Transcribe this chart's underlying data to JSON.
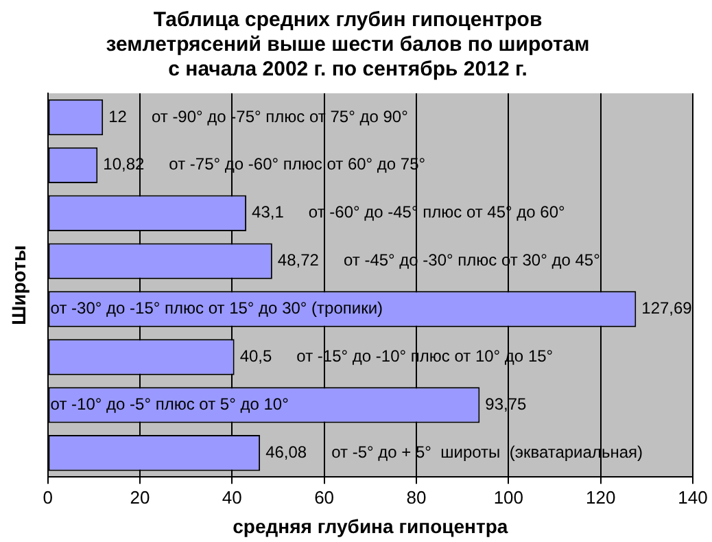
{
  "chart_data": {
    "type": "bar",
    "orientation": "horizontal",
    "title": "Таблица средних глубин гипоцентров\nземлетрясений выше шести балов по широтам\nс начала 2002 г. по сентябрь 2012 г.",
    "xlabel": "средняя глубина гипоцентра",
    "ylabel": "Широты",
    "categories": [
      "от -90° до -75° плюс от 75° до 90°",
      "от -75° до -60° плюс от 60° до 75°",
      "от -60° до -45° плюс от 45° до 60°",
      "от -45° до -30° плюс от 30° до 45°",
      "от -30° до -15° плюс от 15° до 30° (тропики)",
      "от -15° до -10° плюс от 10° до 15°",
      "от -10° до -5° плюс от 5° до 10°",
      "от -5° до + 5°  широты  (экватариальная)"
    ],
    "values": [
      12,
      10.82,
      43.1,
      48.72,
      127.69,
      40.5,
      93.75,
      46.08
    ],
    "value_labels": [
      "12",
      "10,82",
      "43,1",
      "48,72",
      "127,69",
      "40,5",
      "93,75",
      "46,08"
    ],
    "color": "#9999ff",
    "xlim": [
      0,
      140
    ],
    "xticks": [
      0,
      20,
      40,
      60,
      80,
      100,
      120,
      140
    ],
    "grid": "x",
    "tick_labels": "x"
  }
}
